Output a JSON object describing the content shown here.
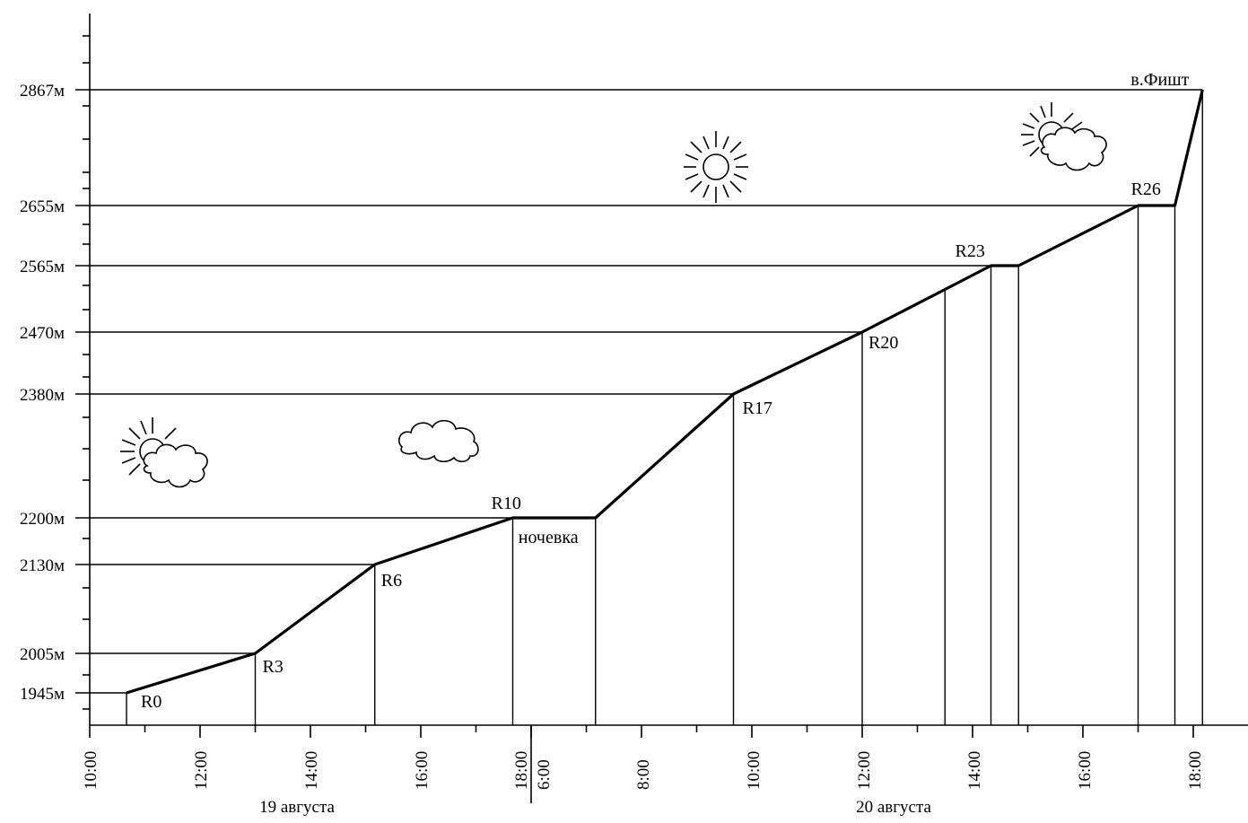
{
  "chart_data": {
    "type": "line",
    "ylabels": [
      "1945м",
      "2005м",
      "2130м",
      "2200м",
      "2380м",
      "2470м",
      "2565м",
      "2655м",
      "2867м"
    ],
    "y_levels": [
      1945,
      2005,
      2130,
      2200,
      2380,
      2470,
      2565,
      2655,
      2867
    ],
    "x_tick_labels": [
      "10:00",
      "12:00",
      "14:00",
      "16:00",
      "18:00",
      "6:00",
      "8:00",
      "10:00",
      "12:00",
      "14:00",
      "16:00",
      "18:00"
    ],
    "dates": [
      "19 августа",
      "20 августа"
    ],
    "series": [
      {
        "points": [
          {
            "time": "19 августа 10:40",
            "alt": 1945,
            "label": "R0"
          },
          {
            "time": "19 августа 13:00",
            "alt": 2005,
            "label": "R3"
          },
          {
            "time": "19 августа 15:10",
            "alt": 2130,
            "label": "R6"
          },
          {
            "time": "19 августа 17:40",
            "alt": 2200,
            "label": "R10"
          },
          {
            "time": "20 августа 7:10",
            "alt": 2200,
            "label": "ночевка"
          },
          {
            "time": "20 августа 9:40",
            "alt": 2380,
            "label": "R17"
          },
          {
            "time": "20 августа 12:00",
            "alt": 2470,
            "label": "R20"
          },
          {
            "time": "20 августа 13:30",
            "alt": 2531,
            "label": ""
          },
          {
            "time": "20 августа 14:20",
            "alt": 2565,
            "label": "R23"
          },
          {
            "time": "20 августа 14:50",
            "alt": 2565,
            "label": ""
          },
          {
            "time": "20 августа 17:00",
            "alt": 2655,
            "label": "R26"
          },
          {
            "time": "20 августа 17:40",
            "alt": 2655,
            "label": ""
          },
          {
            "time": "20 августа 18:10",
            "alt": 2867,
            "label": "в.Фишт"
          }
        ]
      }
    ],
    "weather_icons": [
      "sun-cloud",
      "cloud",
      "sun",
      "sun-cloud"
    ],
    "grid": false
  }
}
